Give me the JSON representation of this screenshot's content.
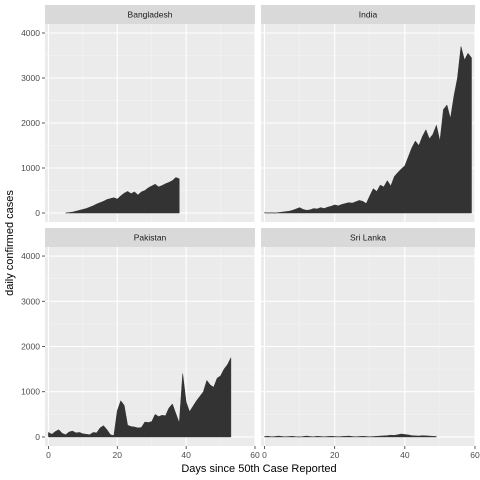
{
  "chart_data": {
    "type": "area",
    "xlabel": "Days since 50th Case Reported",
    "ylabel": "daily confirmed cases",
    "xlim": [
      -1,
      60
    ],
    "ylim": [
      -200,
      4200
    ],
    "x_ticks": [
      0,
      20,
      40,
      60
    ],
    "y_ticks": [
      0,
      1000,
      2000,
      3000,
      4000
    ],
    "grid": true,
    "colors": {
      "panel_bg": "#ebebeb",
      "strip_bg": "#d9d9d9",
      "grid_major": "#ffffff",
      "fill": "#333333"
    },
    "panels": [
      {
        "name": "Bangladesh",
        "points": [
          [
            5,
            0
          ],
          [
            6,
            10
          ],
          [
            7,
            20
          ],
          [
            8,
            40
          ],
          [
            9,
            60
          ],
          [
            10,
            80
          ],
          [
            11,
            100
          ],
          [
            12,
            130
          ],
          [
            13,
            160
          ],
          [
            14,
            200
          ],
          [
            15,
            230
          ],
          [
            16,
            260
          ],
          [
            17,
            300
          ],
          [
            18,
            320
          ],
          [
            19,
            340
          ],
          [
            20,
            310
          ],
          [
            21,
            380
          ],
          [
            22,
            440
          ],
          [
            23,
            480
          ],
          [
            24,
            430
          ],
          [
            25,
            470
          ],
          [
            26,
            400
          ],
          [
            27,
            470
          ],
          [
            28,
            500
          ],
          [
            29,
            560
          ],
          [
            30,
            600
          ],
          [
            31,
            640
          ],
          [
            32,
            580
          ],
          [
            33,
            610
          ],
          [
            34,
            650
          ],
          [
            35,
            680
          ],
          [
            36,
            720
          ],
          [
            37,
            790
          ],
          [
            38,
            760
          ]
        ]
      },
      {
        "name": "India",
        "points": [
          [
            0,
            10
          ],
          [
            1,
            0
          ],
          [
            2,
            5
          ],
          [
            3,
            0
          ],
          [
            4,
            10
          ],
          [
            5,
            20
          ],
          [
            6,
            30
          ],
          [
            7,
            40
          ],
          [
            8,
            60
          ],
          [
            9,
            90
          ],
          [
            10,
            120
          ],
          [
            11,
            80
          ],
          [
            12,
            60
          ],
          [
            13,
            70
          ],
          [
            14,
            100
          ],
          [
            15,
            90
          ],
          [
            16,
            120
          ],
          [
            17,
            100
          ],
          [
            18,
            130
          ],
          [
            19,
            150
          ],
          [
            20,
            180
          ],
          [
            21,
            160
          ],
          [
            22,
            190
          ],
          [
            23,
            210
          ],
          [
            24,
            230
          ],
          [
            25,
            220
          ],
          [
            26,
            250
          ],
          [
            27,
            280
          ],
          [
            28,
            260
          ],
          [
            29,
            210
          ],
          [
            30,
            380
          ],
          [
            31,
            540
          ],
          [
            32,
            480
          ],
          [
            33,
            620
          ],
          [
            34,
            580
          ],
          [
            35,
            720
          ],
          [
            36,
            600
          ],
          [
            37,
            810
          ],
          [
            38,
            900
          ],
          [
            39,
            980
          ],
          [
            40,
            1050
          ],
          [
            41,
            1250
          ],
          [
            42,
            1450
          ],
          [
            43,
            1600
          ],
          [
            44,
            1500
          ],
          [
            45,
            1700
          ],
          [
            46,
            1850
          ],
          [
            47,
            1650
          ],
          [
            48,
            1750
          ],
          [
            49,
            1950
          ],
          [
            50,
            1600
          ],
          [
            51,
            2300
          ],
          [
            52,
            2400
          ],
          [
            53,
            2100
          ],
          [
            54,
            2600
          ],
          [
            55,
            3000
          ],
          [
            56,
            3700
          ],
          [
            57,
            3400
          ],
          [
            58,
            3550
          ],
          [
            59,
            3450
          ]
        ]
      },
      {
        "name": "Pakistan",
        "points": [
          [
            0,
            100
          ],
          [
            1,
            60
          ],
          [
            2,
            120
          ],
          [
            3,
            160
          ],
          [
            4,
            80
          ],
          [
            5,
            50
          ],
          [
            6,
            110
          ],
          [
            7,
            130
          ],
          [
            8,
            90
          ],
          [
            9,
            100
          ],
          [
            10,
            70
          ],
          [
            11,
            60
          ],
          [
            12,
            50
          ],
          [
            13,
            100
          ],
          [
            14,
            90
          ],
          [
            15,
            200
          ],
          [
            16,
            250
          ],
          [
            17,
            160
          ],
          [
            18,
            50
          ],
          [
            19,
            30
          ],
          [
            20,
            580
          ],
          [
            21,
            800
          ],
          [
            22,
            700
          ],
          [
            23,
            260
          ],
          [
            24,
            230
          ],
          [
            25,
            220
          ],
          [
            26,
            200
          ],
          [
            27,
            210
          ],
          [
            28,
            330
          ],
          [
            29,
            320
          ],
          [
            30,
            340
          ],
          [
            31,
            500
          ],
          [
            32,
            450
          ],
          [
            33,
            480
          ],
          [
            34,
            470
          ],
          [
            35,
            640
          ],
          [
            36,
            730
          ],
          [
            37,
            520
          ],
          [
            38,
            310
          ],
          [
            39,
            1400
          ],
          [
            40,
            770
          ],
          [
            41,
            560
          ],
          [
            42,
            680
          ],
          [
            43,
            800
          ],
          [
            44,
            900
          ],
          [
            45,
            1000
          ],
          [
            46,
            1250
          ],
          [
            47,
            1150
          ],
          [
            48,
            1100
          ],
          [
            49,
            1300
          ],
          [
            50,
            1350
          ],
          [
            51,
            1500
          ],
          [
            52,
            1600
          ],
          [
            53,
            1750
          ]
        ]
      },
      {
        "name": "Sri Lanka",
        "points": [
          [
            0,
            10
          ],
          [
            1,
            15
          ],
          [
            2,
            5
          ],
          [
            3,
            10
          ],
          [
            4,
            20
          ],
          [
            5,
            10
          ],
          [
            6,
            5
          ],
          [
            7,
            10
          ],
          [
            8,
            15
          ],
          [
            9,
            5
          ],
          [
            10,
            0
          ],
          [
            11,
            10
          ],
          [
            12,
            20
          ],
          [
            13,
            10
          ],
          [
            14,
            5
          ],
          [
            15,
            15
          ],
          [
            16,
            10
          ],
          [
            17,
            5
          ],
          [
            18,
            10
          ],
          [
            19,
            15
          ],
          [
            20,
            10
          ],
          [
            21,
            5
          ],
          [
            22,
            10
          ],
          [
            23,
            15
          ],
          [
            24,
            20
          ],
          [
            25,
            10
          ],
          [
            26,
            5
          ],
          [
            27,
            10
          ],
          [
            28,
            15
          ],
          [
            29,
            10
          ],
          [
            30,
            5
          ],
          [
            31,
            10
          ],
          [
            32,
            15
          ],
          [
            33,
            20
          ],
          [
            34,
            25
          ],
          [
            35,
            30
          ],
          [
            36,
            40
          ],
          [
            37,
            35
          ],
          [
            38,
            50
          ],
          [
            39,
            65
          ],
          [
            40,
            55
          ],
          [
            41,
            45
          ],
          [
            42,
            30
          ],
          [
            43,
            25
          ],
          [
            44,
            20
          ],
          [
            45,
            30
          ],
          [
            46,
            25
          ],
          [
            47,
            20
          ],
          [
            48,
            15
          ],
          [
            49,
            10
          ]
        ]
      }
    ]
  }
}
